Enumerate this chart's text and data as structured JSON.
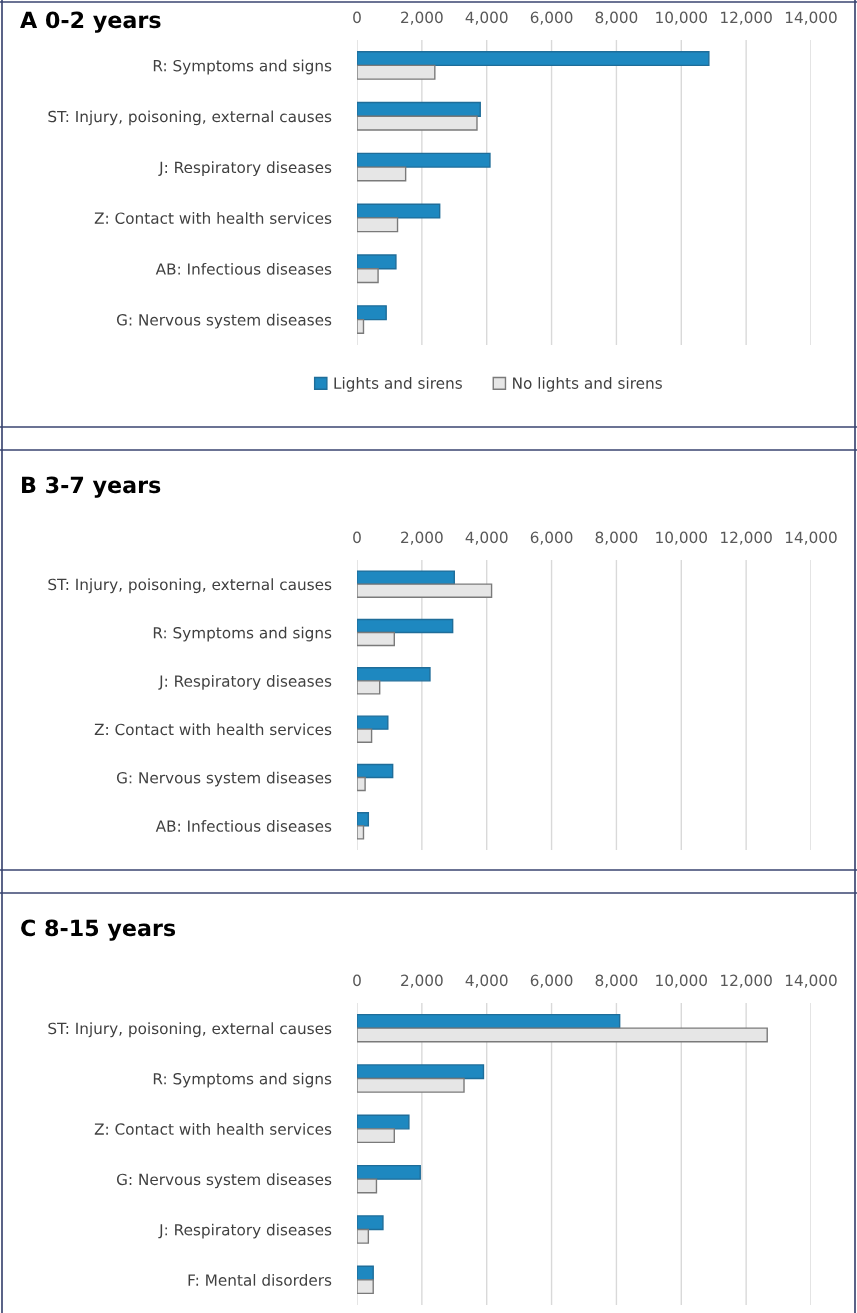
{
  "chart_data": [
    {
      "type": "bar",
      "orientation": "horizontal",
      "title": "A 0-2 years",
      "categories": [
        "R: Symptoms and signs",
        "ST: Injury, poisoning, external causes",
        "J: Respiratory diseases",
        "Z: Contact with health services",
        "AB: Infectious diseases",
        "G: Nervous system diseases"
      ],
      "series": [
        {
          "name": "Lights and sirens",
          "color": "#1e88c0",
          "values": [
            10850,
            3800,
            4100,
            2550,
            1200,
            900
          ]
        },
        {
          "name": "No lights and sirens",
          "color": "#e6e6e6",
          "values": [
            2400,
            3700,
            1500,
            1250,
            650,
            200
          ]
        }
      ],
      "xlim": [
        0,
        14000
      ],
      "xticks": [
        0,
        {
          "value": 2000,
          "label": "2,000"
        },
        {
          "value": 4000,
          "label": "4,000"
        },
        {
          "value": 6000,
          "label": "6,000"
        },
        {
          "value": 8000,
          "label": "8,000"
        },
        {
          "value": 10000,
          "label": "10,000"
        },
        {
          "value": 12000,
          "label": "12,000"
        },
        {
          "value": 14000,
          "label": "14,000"
        }
      ],
      "grid": "x",
      "legend": "bottom"
    },
    {
      "type": "bar",
      "orientation": "horizontal",
      "title": "B 3-7 years",
      "categories": [
        "ST: Injury, poisoning, external causes",
        "R: Symptoms and signs",
        "J: Respiratory diseases",
        "Z: Contact with health services",
        "G: Nervous system diseases",
        "AB: Infectious diseases"
      ],
      "series": [
        {
          "color": "#1e88c0",
          "values": [
            3000,
            2950,
            2250,
            950,
            1100,
            350
          ]
        },
        {
          "color": "#e6e6e6",
          "values": [
            4150,
            1150,
            700,
            450,
            250,
            200
          ]
        }
      ],
      "xlim": [
        0,
        14000
      ],
      "xticks": [
        0,
        {
          "value": 2000,
          "label": "2,000"
        },
        {
          "value": 4000,
          "label": "4,000"
        },
        {
          "value": 6000,
          "label": "6,000"
        },
        {
          "value": 8000,
          "label": "8,000"
        },
        {
          "value": 10000,
          "label": "10,000"
        },
        {
          "value": 12000,
          "label": "12,000"
        },
        {
          "value": 14000,
          "label": "14,000"
        }
      ],
      "grid": "x"
    },
    {
      "type": "bar",
      "orientation": "horizontal",
      "title": "C 8-15 years",
      "categories": [
        "ST: Injury, poisoning, external causes",
        "R: Symptoms and signs",
        "Z: Contact with health services",
        "G: Nervous system diseases",
        "J: Respiratory diseases",
        "F: Mental disorders"
      ],
      "series": [
        {
          "color": "#1e88c0",
          "values": [
            8100,
            3900,
            1600,
            1950,
            800,
            500
          ]
        },
        {
          "color": "#e6e6e6",
          "values": [
            12650,
            3300,
            1150,
            600,
            350,
            500
          ]
        }
      ],
      "xlim": [
        0,
        14000
      ],
      "xticks": [
        0,
        {
          "value": 2000,
          "label": "2,000"
        },
        {
          "value": 4000,
          "label": "4,000"
        },
        {
          "value": 6000,
          "label": "6,000"
        },
        {
          "value": 8000,
          "label": "8,000"
        },
        {
          "value": 10000,
          "label": "10,000"
        },
        {
          "value": 12000,
          "label": "12,000"
        },
        {
          "value": 14000,
          "label": "14,000"
        }
      ],
      "grid": "x"
    }
  ]
}
